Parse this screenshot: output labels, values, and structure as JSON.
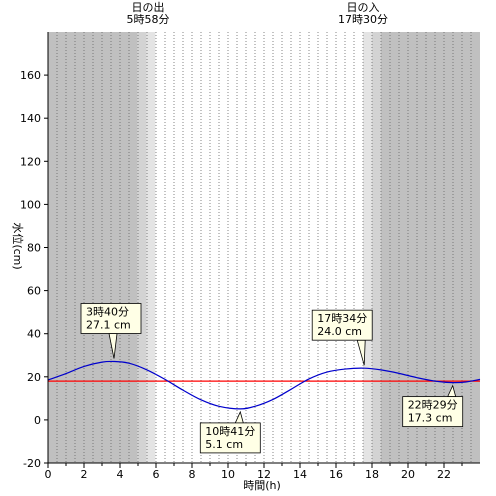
{
  "chart_data": {
    "type": "line",
    "xlabel": "時間(h)",
    "ylabel": "水位(cm)",
    "xlim": [
      0,
      24
    ],
    "ylim": [
      -20,
      180
    ],
    "x_ticks": [
      0,
      2,
      4,
      6,
      8,
      10,
      12,
      14,
      16,
      18,
      20,
      22
    ],
    "y_ticks": [
      -20,
      0,
      20,
      40,
      60,
      80,
      100,
      120,
      140,
      160
    ],
    "grid": "vertical dotted, every 30 min",
    "sunrise": {
      "label": "日の出",
      "time": "5時58分",
      "hour": 5.967
    },
    "sunset": {
      "label": "日の入",
      "time": "17時30分",
      "hour": 17.5
    },
    "reference_line": {
      "value": 18,
      "color": "#ff0000"
    },
    "series": [
      {
        "color": "#0000cc",
        "x": [
          0,
          1,
          2,
          3,
          3.667,
          4.5,
          5.5,
          6.5,
          7.5,
          8.5,
          9.5,
          10.683,
          11.5,
          12.5,
          13.5,
          14.5,
          15.5,
          16.5,
          17.567,
          18.5,
          19.5,
          20.5,
          21.5,
          22.483,
          23.2,
          24
        ],
        "y": [
          18.5,
          21.5,
          24.8,
          26.8,
          27.1,
          26.3,
          23.2,
          18.8,
          13.8,
          9.3,
          6.3,
          5.1,
          6.3,
          9.5,
          14.2,
          19,
          22.2,
          23.6,
          24,
          23.2,
          21.6,
          19.6,
          18,
          17.3,
          17.6,
          18.8
        ]
      }
    ],
    "annotations": [
      {
        "time": "3時40分",
        "level": "27.1 cm",
        "x": 3.667,
        "y": 27.1
      },
      {
        "time": "10時41分",
        "level": "5.1 cm",
        "x": 10.683,
        "y": 5.1
      },
      {
        "time": "17時34分",
        "level": "24.0 cm",
        "x": 17.567,
        "y": 24.0
      },
      {
        "time": "22時29分",
        "level": "17.3 cm",
        "x": 22.483,
        "y": 17.3
      }
    ],
    "colors": {
      "night": "#c0c0c0",
      "twilight_dark": "#d3d3d3",
      "twilight_light": "#e4e4e4",
      "day": "#ffffff",
      "callout_fill": "#ffffe6"
    }
  }
}
